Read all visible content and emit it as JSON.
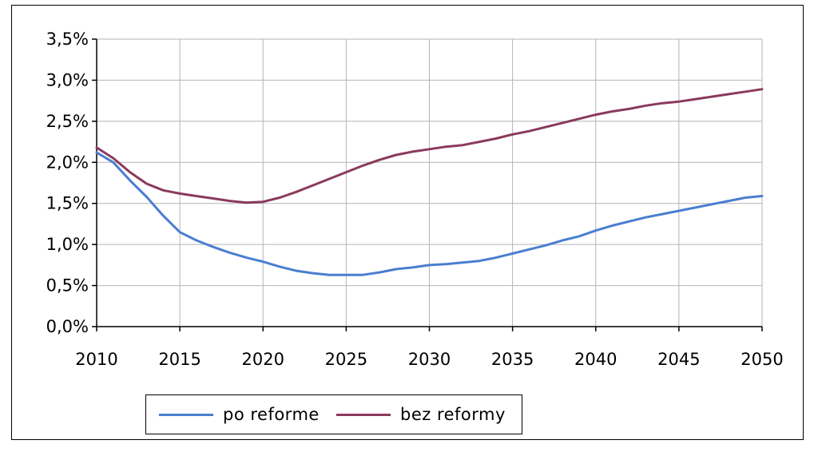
{
  "chart_data": {
    "type": "line",
    "x": [
      2010,
      2011,
      2012,
      2013,
      2014,
      2015,
      2016,
      2017,
      2018,
      2019,
      2020,
      2021,
      2022,
      2023,
      2024,
      2025,
      2026,
      2027,
      2028,
      2029,
      2030,
      2031,
      2032,
      2033,
      2034,
      2035,
      2036,
      2037,
      2038,
      2039,
      2040,
      2041,
      2042,
      2043,
      2044,
      2045,
      2046,
      2047,
      2048,
      2049,
      2050
    ],
    "series": [
      {
        "name": "po reforme",
        "color": "#4a7ed0",
        "values": [
          2.12,
          2.0,
          1.78,
          1.58,
          1.35,
          1.15,
          1.05,
          0.97,
          0.9,
          0.84,
          0.79,
          0.73,
          0.68,
          0.65,
          0.63,
          0.63,
          0.63,
          0.66,
          0.7,
          0.72,
          0.75,
          0.76,
          0.78,
          0.8,
          0.84,
          0.89,
          0.94,
          0.99,
          1.05,
          1.1,
          1.17,
          1.23,
          1.28,
          1.33,
          1.37,
          1.41,
          1.45,
          1.49,
          1.53,
          1.57,
          1.59
        ]
      },
      {
        "name": "bez reformy",
        "color": "#8a3a5c",
        "values": [
          2.18,
          2.05,
          1.88,
          1.74,
          1.66,
          1.62,
          1.59,
          1.56,
          1.53,
          1.51,
          1.52,
          1.57,
          1.64,
          1.72,
          1.8,
          1.88,
          1.96,
          2.03,
          2.09,
          2.13,
          2.16,
          2.19,
          2.21,
          2.25,
          2.29,
          2.34,
          2.38,
          2.43,
          2.48,
          2.53,
          2.58,
          2.62,
          2.65,
          2.69,
          2.72,
          2.74,
          2.77,
          2.8,
          2.83,
          2.86,
          2.89
        ]
      }
    ],
    "xticks": [
      "2010",
      "2015",
      "2020",
      "2025",
      "2030",
      "2035",
      "2040",
      "2045",
      "2050"
    ],
    "xtick_values": [
      2010,
      2015,
      2020,
      2025,
      2030,
      2035,
      2040,
      2045,
      2050
    ],
    "yticks": [
      "0,0%",
      "0,5%",
      "1,0%",
      "1,5%",
      "2,0%",
      "2,5%",
      "3,0%",
      "3,5%"
    ],
    "ytick_values": [
      0,
      0.5,
      1.0,
      1.5,
      2.0,
      2.5,
      3.0,
      3.5
    ],
    "xlim": [
      2010,
      2050
    ],
    "ylim": [
      0,
      3.5
    ],
    "grid": true,
    "legend_placement": "bottom",
    "title": "",
    "xlabel": "",
    "ylabel": ""
  }
}
